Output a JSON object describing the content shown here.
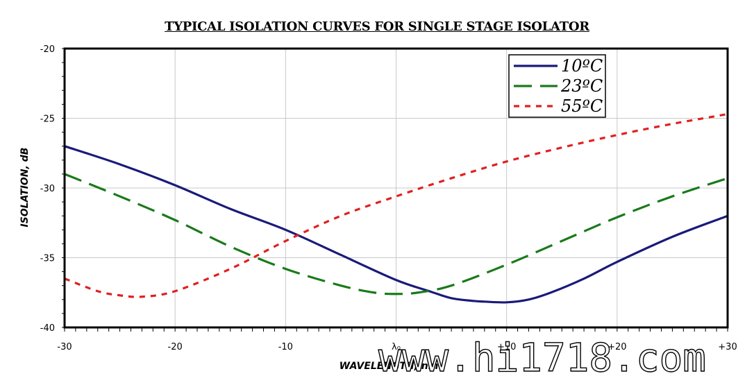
{
  "chart_data": {
    "type": "line",
    "title": "TYPICAL ISOLATION CURVES FOR SINGLE STAGE ISOLATOR",
    "xlabel": "WAVELENGTH, nm",
    "ylabel": "ISOLATION, dB",
    "xlim": [
      -30,
      30
    ],
    "ylim": [
      -40,
      -20
    ],
    "x_ticks": [
      {
        "value": -30,
        "label": "-30"
      },
      {
        "value": -20,
        "label": "-20"
      },
      {
        "value": -10,
        "label": "-10"
      },
      {
        "value": 0,
        "label": "λ₀"
      },
      {
        "value": 10,
        "label": "+10"
      },
      {
        "value": 20,
        "label": "+20"
      },
      {
        "value": 30,
        "label": "+30"
      }
    ],
    "y_ticks": [
      {
        "value": -20,
        "label": "-20"
      },
      {
        "value": -25,
        "label": "-25"
      },
      {
        "value": -30,
        "label": "-30"
      },
      {
        "value": -35,
        "label": "-35"
      },
      {
        "value": -40,
        "label": "-40"
      }
    ],
    "grid": true,
    "legend_position": "top-right",
    "series": [
      {
        "name": "10ºC",
        "color": "#1a1a7a",
        "dash": "solid",
        "x": [
          -30,
          -25,
          -20,
          -15,
          -10,
          -5,
          0,
          3,
          5,
          7,
          8,
          10,
          12,
          14,
          17,
          20,
          25,
          30
        ],
        "y": [
          -27.0,
          -28.3,
          -29.8,
          -31.5,
          -33.0,
          -34.8,
          -36.6,
          -37.4,
          -37.9,
          -38.1,
          -38.15,
          -38.2,
          -38.0,
          -37.5,
          -36.5,
          -35.3,
          -33.5,
          -32.0
        ]
      },
      {
        "name": "23ºC",
        "color": "#1a7a1a",
        "dash": "dashed",
        "x": [
          -30,
          -25,
          -20,
          -15,
          -10,
          -5,
          -2,
          0,
          2,
          5,
          10,
          15,
          20,
          25,
          30
        ],
        "y": [
          -29.0,
          -30.6,
          -32.3,
          -34.2,
          -35.8,
          -37.0,
          -37.5,
          -37.6,
          -37.5,
          -37.0,
          -35.5,
          -33.8,
          -32.1,
          -30.6,
          -29.3
        ]
      },
      {
        "name": "55ºC",
        "color": "#e02020",
        "dash": "dotted",
        "x": [
          -30,
          -27,
          -25,
          -23,
          -20,
          -15,
          -10,
          -5,
          0,
          5,
          10,
          15,
          20,
          25,
          30
        ],
        "y": [
          -36.5,
          -37.4,
          -37.7,
          -37.8,
          -37.4,
          -35.8,
          -33.8,
          -32.0,
          -30.6,
          -29.3,
          -28.1,
          -27.1,
          -26.2,
          -25.4,
          -24.7
        ]
      }
    ]
  },
  "watermark": "www.hi1718.com"
}
